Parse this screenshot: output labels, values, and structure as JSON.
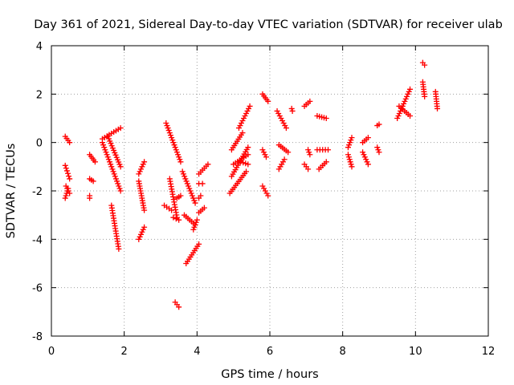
{
  "chart_data": {
    "type": "scatter",
    "title": "Day 361 of 2021, Sidereal Day-to-day VTEC variation (SDTVAR) for receiver ulab",
    "xlabel": "GPS time / hours",
    "ylabel": "SDTVAR / TECUs",
    "xlim": [
      0,
      12
    ],
    "ylim": [
      -8,
      4
    ],
    "xticks": [
      0,
      2,
      4,
      6,
      8,
      10,
      12
    ],
    "yticks": [
      -8,
      -6,
      -4,
      -2,
      0,
      2,
      4
    ],
    "xtick_labels": [
      "0",
      "2",
      "4",
      "6",
      "8",
      "10",
      "12"
    ],
    "ytick_labels": [
      "-8",
      "-6",
      "-4",
      "-2",
      "0",
      "2",
      "4"
    ],
    "grid": true,
    "marker": "plus",
    "marker_color": "#ff0000",
    "segments": [
      [
        [
          0.38,
          0.25
        ],
        [
          0.5,
          0.0
        ]
      ],
      [
        [
          0.38,
          -0.95
        ],
        [
          0.5,
          -1.5
        ]
      ],
      [
        [
          0.4,
          -1.8
        ],
        [
          0.5,
          -2.1
        ]
      ],
      [
        [
          0.38,
          -2.3
        ],
        [
          0.46,
          -1.9
        ]
      ],
      [
        [
          1.05,
          -0.5
        ],
        [
          1.2,
          -0.8
        ]
      ],
      [
        [
          1.05,
          -1.5
        ],
        [
          1.15,
          -1.6
        ]
      ],
      [
        [
          1.05,
          -2.3
        ],
        [
          1.05,
          -2.2
        ]
      ],
      [
        [
          1.4,
          0.0
        ],
        [
          1.9,
          -2.0
        ]
      ],
      [
        [
          1.4,
          0.15
        ],
        [
          1.9,
          0.6
        ]
      ],
      [
        [
          1.55,
          0.25
        ],
        [
          1.9,
          -1.0
        ]
      ],
      [
        [
          1.65,
          -2.6
        ],
        [
          1.85,
          -4.4
        ]
      ],
      [
        [
          2.4,
          -1.3
        ],
        [
          2.55,
          -0.8
        ]
      ],
      [
        [
          2.4,
          -1.6
        ],
        [
          2.55,
          -2.8
        ]
      ],
      [
        [
          2.4,
          -4.0
        ],
        [
          2.55,
          -3.5
        ]
      ],
      [
        [
          3.15,
          0.8
        ],
        [
          3.55,
          -0.8
        ]
      ],
      [
        [
          3.1,
          -2.6
        ],
        [
          3.3,
          -2.8
        ]
      ],
      [
        [
          3.25,
          -1.5
        ],
        [
          3.45,
          -3.1
        ]
      ],
      [
        [
          3.35,
          -3.1
        ],
        [
          3.5,
          -3.2
        ]
      ],
      [
        [
          3.4,
          -6.6
        ],
        [
          3.5,
          -6.8
        ]
      ],
      [
        [
          3.45,
          -2.3
        ],
        [
          3.55,
          -2.2
        ]
      ],
      [
        [
          3.6,
          -1.2
        ],
        [
          3.95,
          -2.5
        ]
      ],
      [
        [
          3.65,
          -3.0
        ],
        [
          3.95,
          -3.4
        ]
      ],
      [
        [
          3.7,
          -5.0
        ],
        [
          4.05,
          -4.2
        ]
      ],
      [
        [
          3.9,
          -3.6
        ],
        [
          4.0,
          -3.2
        ]
      ],
      [
        [
          4.05,
          -1.3
        ],
        [
          4.3,
          -0.9
        ]
      ],
      [
        [
          4.05,
          -1.7
        ],
        [
          4.15,
          -1.7
        ]
      ],
      [
        [
          4.05,
          -2.3
        ],
        [
          4.1,
          -2.2
        ]
      ],
      [
        [
          4.05,
          -2.9
        ],
        [
          4.2,
          -2.7
        ]
      ],
      [
        [
          4.9,
          -2.1
        ],
        [
          5.35,
          -1.2
        ]
      ],
      [
        [
          4.95,
          -0.3
        ],
        [
          5.25,
          0.4
        ]
      ],
      [
        [
          4.95,
          -1.4
        ],
        [
          5.4,
          -0.2
        ]
      ],
      [
        [
          5.0,
          -0.9
        ],
        [
          5.4,
          -0.5
        ]
      ],
      [
        [
          5.15,
          0.6
        ],
        [
          5.45,
          1.5
        ]
      ],
      [
        [
          5.2,
          -0.8
        ],
        [
          5.4,
          -0.9
        ]
      ],
      [
        [
          5.8,
          2.0
        ],
        [
          5.95,
          1.7
        ]
      ],
      [
        [
          5.8,
          -0.3
        ],
        [
          5.9,
          -0.6
        ]
      ],
      [
        [
          5.8,
          -1.8
        ],
        [
          5.95,
          -2.2
        ]
      ],
      [
        [
          6.2,
          1.3
        ],
        [
          6.45,
          0.6
        ]
      ],
      [
        [
          6.25,
          -0.1
        ],
        [
          6.5,
          -0.4
        ]
      ],
      [
        [
          6.25,
          -1.1
        ],
        [
          6.4,
          -0.7
        ]
      ],
      [
        [
          6.6,
          1.4
        ],
        [
          6.62,
          1.3
        ]
      ],
      [
        [
          6.95,
          1.5
        ],
        [
          7.1,
          1.7
        ]
      ],
      [
        [
          6.95,
          -0.9
        ],
        [
          7.05,
          -1.1
        ]
      ],
      [
        [
          7.05,
          -0.3
        ],
        [
          7.1,
          -0.5
        ]
      ],
      [
        [
          7.3,
          1.1
        ],
        [
          7.55,
          1.0
        ]
      ],
      [
        [
          7.3,
          -0.3
        ],
        [
          7.6,
          -0.3
        ]
      ],
      [
        [
          7.35,
          -1.1
        ],
        [
          7.55,
          -0.8
        ]
      ],
      [
        [
          8.15,
          -0.2
        ],
        [
          8.25,
          0.2
        ]
      ],
      [
        [
          8.15,
          -0.5
        ],
        [
          8.25,
          -1.0
        ]
      ],
      [
        [
          8.55,
          0.0
        ],
        [
          8.7,
          0.2
        ]
      ],
      [
        [
          8.55,
          -0.4
        ],
        [
          8.7,
          -0.9
        ]
      ],
      [
        [
          8.95,
          0.7
        ],
        [
          9.0,
          0.75
        ]
      ],
      [
        [
          8.95,
          -0.2
        ],
        [
          9.0,
          -0.4
        ]
      ],
      [
        [
          9.5,
          1.0
        ],
        [
          9.85,
          2.2
        ]
      ],
      [
        [
          9.55,
          1.5
        ],
        [
          9.85,
          1.1
        ]
      ],
      [
        [
          10.2,
          3.3
        ],
        [
          10.25,
          3.2
        ]
      ],
      [
        [
          10.2,
          2.5
        ],
        [
          10.25,
          1.9
        ]
      ],
      [
        [
          10.55,
          2.1
        ],
        [
          10.6,
          1.4
        ]
      ]
    ]
  }
}
